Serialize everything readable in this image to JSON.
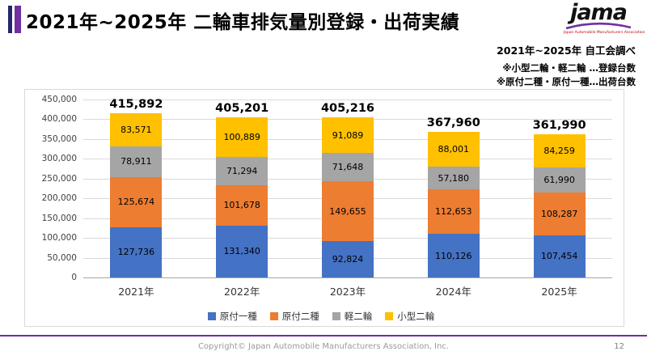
{
  "header": {
    "title": "2021年~2025年  二輪車排気量別登録・出荷実績",
    "logo_text": "jama",
    "logo_subtext": "Japan Automobile Manufacturers Association"
  },
  "notes": {
    "line1": "2021年~2025年  自工会調べ",
    "line2": "※小型二輪・軽二輪 …登録台数",
    "line3": "※原付二種・原付一種…出荷台数"
  },
  "chart_data": {
    "type": "bar",
    "stacked": true,
    "title": "2021年~2025年 二輪車排気量別登録・出荷実績",
    "categories": [
      "2021年",
      "2022年",
      "2023年",
      "2024年",
      "2025年"
    ],
    "series": [
      {
        "name": "原付一種",
        "color": "#4472C4",
        "values": [
          127736,
          131340,
          92824,
          110126,
          107454
        ]
      },
      {
        "name": "原付二種",
        "color": "#ED7D31",
        "values": [
          125674,
          101678,
          149655,
          112653,
          108287
        ]
      },
      {
        "name": "軽二輪",
        "color": "#A5A5A5",
        "values": [
          78911,
          71294,
          71648,
          57180,
          61990
        ]
      },
      {
        "name": "小型二輪",
        "color": "#FFC000",
        "values": [
          83571,
          100889,
          91089,
          88001,
          84259
        ]
      }
    ],
    "totals": [
      415892,
      405201,
      405216,
      367960,
      361990
    ],
    "ylim": [
      0,
      450000
    ],
    "ytick_step": 50000,
    "grid": true,
    "legend_position": "bottom"
  },
  "footer": {
    "copyright": "Copyright© Japan Automobile Manufacturers Association, Inc.",
    "page_number": "12"
  }
}
